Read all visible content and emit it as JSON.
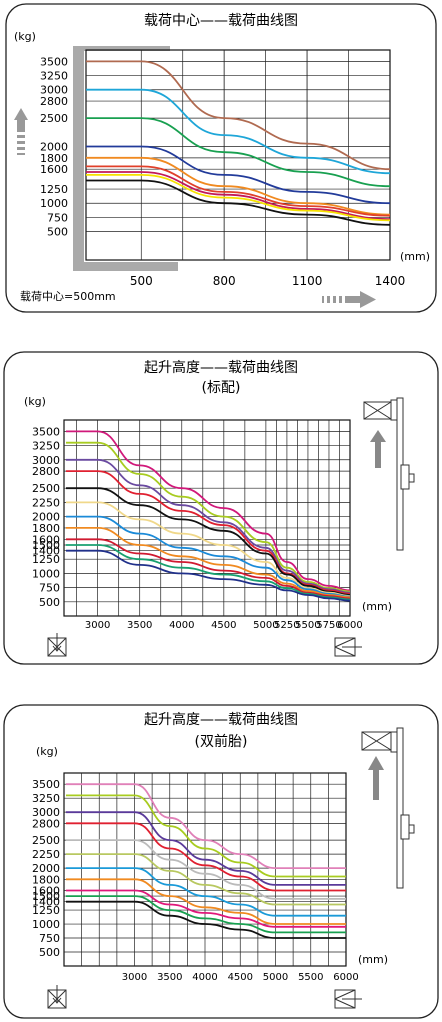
{
  "chart_data": [
    {
      "type": "line",
      "title": "载荷中心——载荷曲线图",
      "ylabel": "(kg)",
      "xlabel": "(mm)",
      "footnote": "载荷中心=500mm",
      "ylim": [
        0,
        3700
      ],
      "xlim": [
        300,
        1400
      ],
      "y_ticks": [
        500,
        750,
        1000,
        1250,
        1600,
        1800,
        2000,
        2500,
        2800,
        3000,
        3250,
        3500
      ],
      "x_ticks": [
        500,
        800,
        1100,
        1400
      ],
      "x": [
        500,
        800,
        1100,
        1400
      ],
      "series": [
        {
          "color": "#b06a50",
          "values": [
            3500,
            2500,
            2050,
            1600
          ]
        },
        {
          "color": "#1ea6d8",
          "values": [
            3000,
            2200,
            1800,
            1530
          ]
        },
        {
          "color": "#18a050",
          "values": [
            2500,
            1900,
            1550,
            1300
          ]
        },
        {
          "color": "#223b9a",
          "values": [
            2000,
            1500,
            1200,
            1000
          ]
        },
        {
          "color": "#f08a20",
          "values": [
            1800,
            1300,
            1000,
            800
          ]
        },
        {
          "color": "#e0402a",
          "values": [
            1650,
            1200,
            950,
            780
          ]
        },
        {
          "color": "#c21a5a",
          "values": [
            1550,
            1150,
            900,
            720
          ]
        },
        {
          "color": "#f6e200",
          "values": [
            1500,
            1100,
            870,
            700
          ]
        },
        {
          "color": "#111111",
          "values": [
            1400,
            1000,
            800,
            620
          ]
        }
      ]
    },
    {
      "type": "line",
      "title": "起升高度——载荷曲线图",
      "subtitle": "(标配)",
      "ylabel": "(kg)",
      "xlabel": "(mm)",
      "ylim": [
        250,
        3700
      ],
      "xlim": [
        2600,
        6000
      ],
      "y_ticks": [
        500,
        750,
        1000,
        1250,
        1400,
        1500,
        1600,
        1800,
        2000,
        2250,
        2500,
        2800,
        3000,
        3250,
        3500
      ],
      "x_ticks": [
        3000,
        3500,
        4000,
        4500,
        5000,
        5250,
        5500,
        5750,
        6000
      ],
      "x": [
        3000,
        3500,
        4000,
        4500,
        5000,
        5250,
        5500,
        5750,
        6000
      ],
      "series": [
        {
          "color": "#d0187a",
          "values": [
            3500,
            2900,
            2500,
            2150,
            1700,
            1200,
            900,
            780,
            700
          ]
        },
        {
          "color": "#a8cc20",
          "values": [
            3300,
            2750,
            2350,
            2000,
            1550,
            1100,
            850,
            740,
            680
          ]
        },
        {
          "color": "#6a4aa0",
          "values": [
            3000,
            2550,
            2200,
            1900,
            1450,
            1050,
            820,
            720,
            660
          ]
        },
        {
          "color": "#e02030",
          "values": [
            2800,
            2400,
            2100,
            1850,
            1400,
            1000,
            800,
            700,
            640
          ]
        },
        {
          "color": "#111111",
          "values": [
            2500,
            2200,
            1950,
            1750,
            1350,
            980,
            780,
            680,
            620
          ]
        },
        {
          "color": "#f0d88a",
          "values": [
            2250,
            1950,
            1700,
            1500,
            1200,
            920,
            740,
            660,
            600
          ]
        },
        {
          "color": "#1a8ad8",
          "values": [
            2000,
            1700,
            1450,
            1300,
            1100,
            880,
            720,
            640,
            590
          ]
        },
        {
          "color": "#f08a20",
          "values": [
            1800,
            1500,
            1300,
            1150,
            980,
            820,
            690,
            620,
            580
          ]
        },
        {
          "color": "#d01a30",
          "values": [
            1600,
            1350,
            1200,
            1050,
            920,
            780,
            660,
            600,
            560
          ]
        },
        {
          "color": "#18a070",
          "values": [
            1500,
            1250,
            1100,
            980,
            860,
            740,
            640,
            580,
            540
          ]
        },
        {
          "color": "#20308a",
          "values": [
            1400,
            1150,
            1000,
            900,
            800,
            700,
            620,
            560,
            520
          ]
        }
      ]
    },
    {
      "type": "line",
      "title": "起升高度——载荷曲线图",
      "subtitle": "(双前胎)",
      "ylabel": "(kg)",
      "xlabel": "(mm)",
      "ylim": [
        250,
        3700
      ],
      "xlim": [
        2000,
        6000
      ],
      "y_ticks": [
        500,
        750,
        1000,
        1250,
        1400,
        1500,
        1600,
        1800,
        2000,
        2250,
        2500,
        2800,
        3000,
        3250,
        3500
      ],
      "x_ticks": [
        3000,
        3500,
        4000,
        4500,
        5000,
        5500,
        6000
      ],
      "x": [
        3000,
        3500,
        4000,
        4500,
        5000,
        5500,
        6000
      ],
      "series": [
        {
          "color": "#e080b8",
          "values": [
            3500,
            2900,
            2500,
            2250,
            2000,
            2000,
            2000
          ]
        },
        {
          "color": "#a8cc20",
          "values": [
            3300,
            2750,
            2350,
            2100,
            1850,
            1850,
            1850
          ]
        },
        {
          "color": "#5a3a9a",
          "values": [
            3000,
            2500,
            2150,
            1950,
            1700,
            1700,
            1700
          ]
        },
        {
          "color": "#e02030",
          "values": [
            2800,
            2350,
            2050,
            1850,
            1600,
            1600,
            1600
          ]
        },
        {
          "color": "#bbbbbb",
          "values": [
            2500,
            2150,
            1900,
            1700,
            1450,
            1450,
            1450
          ]
        },
        {
          "color": "#b8c860",
          "values": [
            2250,
            1950,
            1700,
            1550,
            1350,
            1350,
            1350
          ]
        },
        {
          "color": "#1a9ad8",
          "values": [
            2000,
            1700,
            1500,
            1350,
            1150,
            1150,
            1150
          ]
        },
        {
          "color": "#f08a20",
          "values": [
            1800,
            1500,
            1300,
            1200,
            1000,
            1000,
            1000
          ]
        },
        {
          "color": "#e0187a",
          "values": [
            1600,
            1350,
            1200,
            1100,
            950,
            950,
            950
          ]
        },
        {
          "color": "#18a050",
          "values": [
            1500,
            1250,
            1100,
            1000,
            850,
            850,
            850
          ]
        },
        {
          "color": "#111111",
          "values": [
            1400,
            1150,
            1000,
            900,
            750,
            750,
            750
          ]
        }
      ]
    }
  ]
}
